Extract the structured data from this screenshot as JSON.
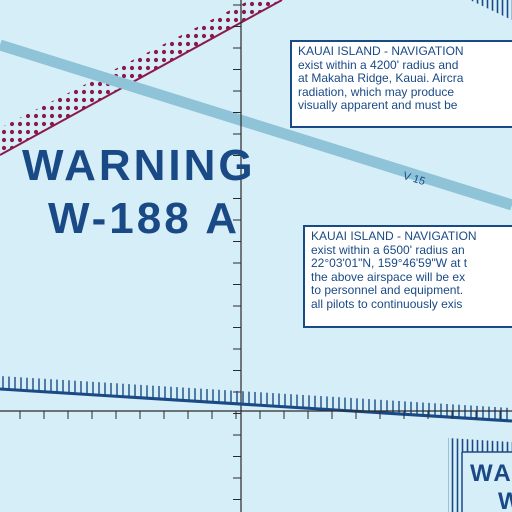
{
  "colors": {
    "water": "#d6eef8",
    "chart_blue": "#1a4a86",
    "restricted_magenta": "#8a1a4a",
    "airway_blue": "#8fc4d8",
    "graticule": "#2a2a2a"
  },
  "warning_area": {
    "line1": "WARNING",
    "line2": "W-188 A"
  },
  "airway": {
    "label": "V 15"
  },
  "notes": [
    {
      "title": "KAUAI ISLAND - NAVIGATION",
      "lines": [
        "exist within a 4200' radius and",
        "at Makaha Ridge, Kauai. Aircra",
        "radiation, which may produce",
        "visually apparent and must be"
      ]
    },
    {
      "title": "KAUAI ISLAND - NAVIGATION",
      "lines": [
        "exist within a 6500' radius an",
        "22°03'01\"N, 159°46'59\"W at t",
        "the above airspace will be ex",
        "to personnel and equipment.",
        "all pilots to continuously exis"
      ]
    }
  ],
  "adjacent_area": {
    "line1": "WA",
    "line2": "W"
  }
}
